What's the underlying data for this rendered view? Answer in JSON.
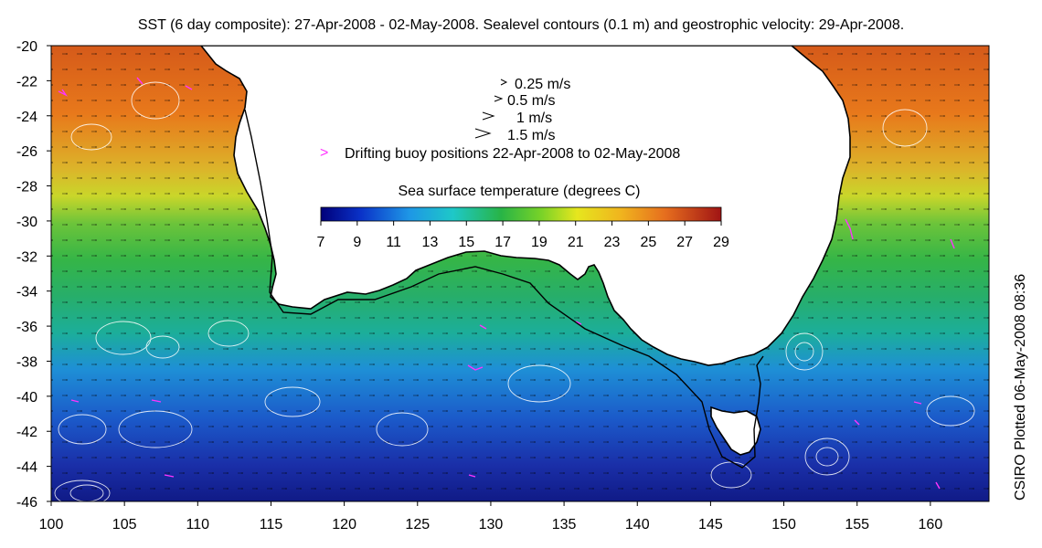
{
  "title": "SST (6 day composite): 27-Apr-2008 - 02-May-2008. Sealevel contours (0.1 m) and geostrophic velocity: 29-Apr-2008.",
  "credit": "CSIRO Plotted 06-May-2008 08:36",
  "axes": {
    "x_ticks": [
      "100",
      "105",
      "110",
      "115",
      "120",
      "125",
      "130",
      "135",
      "140",
      "145",
      "150",
      "155",
      "160"
    ],
    "y_ticks": [
      "-20",
      "-22",
      "-24",
      "-26",
      "-28",
      "-30",
      "-32",
      "-34",
      "-36",
      "-38",
      "-40",
      "-42",
      "-44",
      "-46"
    ],
    "lon_range": [
      100,
      164
    ],
    "lat_range": [
      -46,
      -20
    ]
  },
  "legend": {
    "speeds": [
      {
        "label": "0.25 m/s",
        "value": 0.25
      },
      {
        "label": "0.5 m/s",
        "value": 0.5
      },
      {
        "label": "1 m/s",
        "value": 1
      },
      {
        "label": "1.5 m/s",
        "value": 1.5
      }
    ],
    "buoy_marker": ">",
    "buoy_label": "Drifting buoy positions 22-Apr-2008 to 02-May-2008"
  },
  "colorbar": {
    "title": "Sea surface temperature (degrees C)",
    "ticks": [
      "7",
      "9",
      "11",
      "13",
      "15",
      "17",
      "19",
      "21",
      "23",
      "25",
      "27",
      "29"
    ],
    "range": [
      7,
      29
    ]
  },
  "colors": {
    "land": "#ffffff",
    "coast": "#000000",
    "contours": "#ffffff",
    "buoys": "#ff33ff"
  }
}
